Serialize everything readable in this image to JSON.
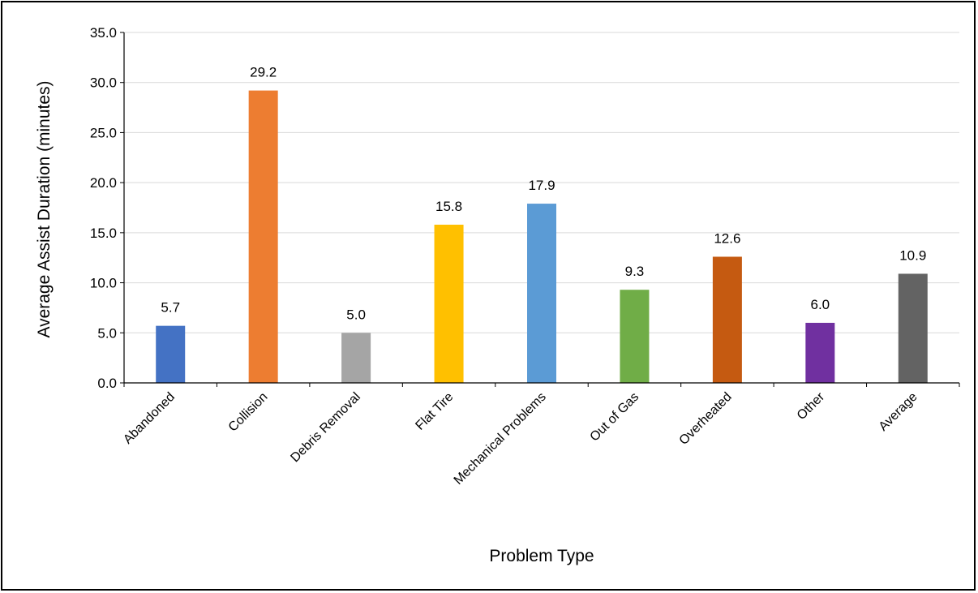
{
  "chart_data": {
    "type": "bar",
    "title": "",
    "xlabel": "Problem Type",
    "ylabel": "Average Assist Duration (minutes)",
    "ylim": [
      0,
      35
    ],
    "ytick_step": 5,
    "ytick_labels": [
      "0.0",
      "5.0",
      "10.0",
      "15.0",
      "20.0",
      "25.0",
      "30.0",
      "35.0"
    ],
    "grid": true,
    "legend": "none",
    "categories": [
      "Abandoned",
      "Collision",
      "Debris Removal",
      "Flat Tire",
      "Mechanical Problems",
      "Out of Gas",
      "Overheated",
      "Other",
      "Average"
    ],
    "values": [
      5.7,
      29.2,
      5.0,
      15.8,
      17.9,
      9.3,
      12.6,
      6.0,
      10.9
    ],
    "value_labels": [
      "5.7",
      "29.2",
      "5.0",
      "15.8",
      "17.9",
      "9.3",
      "12.6",
      "6.0",
      "10.9"
    ],
    "colors": [
      "#4472C4",
      "#ED7D31",
      "#A5A5A5",
      "#FFC000",
      "#5B9BD5",
      "#70AD47",
      "#C55A11",
      "#7030A0",
      "#636363"
    ]
  }
}
